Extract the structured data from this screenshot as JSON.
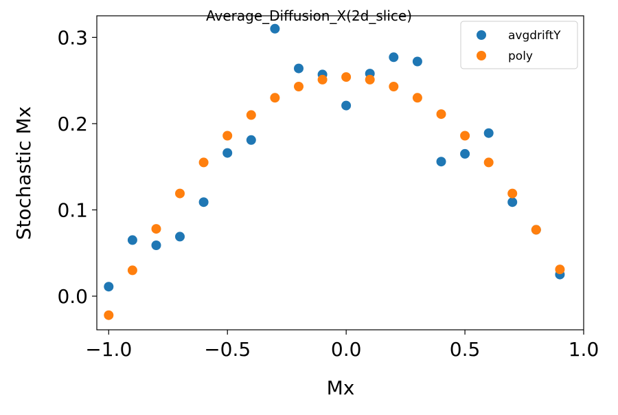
{
  "chart_data": {
    "type": "scatter",
    "title": "Average_Diffusion_X(2d_slice)",
    "xlabel": "Mx",
    "ylabel": "Stochastic Mx",
    "xlim": [
      -1.05,
      1.0
    ],
    "ylim": [
      -0.039,
      0.325
    ],
    "xticks": [
      -1.0,
      -0.5,
      0.0,
      0.5,
      1.0
    ],
    "xtick_labels": [
      "−1.0",
      "−0.5",
      "0.0",
      "0.5",
      "1.0"
    ],
    "yticks": [
      0.0,
      0.1,
      0.2,
      0.3
    ],
    "ytick_labels": [
      "0.0",
      "0.1",
      "0.2",
      "0.3"
    ],
    "grid": false,
    "legend_position": "top-right",
    "series": [
      {
        "name": "avgdriftY",
        "color": "#1f77b4",
        "x": [
          -1.0,
          -0.9,
          -0.8,
          -0.7,
          -0.6,
          -0.5,
          -0.4,
          -0.3,
          -0.2,
          -0.1,
          0.0,
          0.1,
          0.2,
          0.3,
          0.4,
          0.5,
          0.6,
          0.7,
          0.8,
          0.9
        ],
        "y": [
          0.011,
          0.065,
          0.059,
          0.069,
          0.109,
          0.166,
          0.181,
          0.31,
          0.264,
          0.257,
          0.221,
          0.258,
          0.277,
          0.272,
          0.156,
          0.165,
          0.189,
          0.109,
          0.077,
          0.025
        ]
      },
      {
        "name": "poly",
        "color": "#ff7f0e",
        "x": [
          -1.0,
          -0.9,
          -0.8,
          -0.7,
          -0.6,
          -0.5,
          -0.4,
          -0.3,
          -0.2,
          -0.1,
          0.0,
          0.1,
          0.2,
          0.3,
          0.4,
          0.5,
          0.6,
          0.7,
          0.8,
          0.9
        ],
        "y": [
          -0.022,
          0.03,
          0.078,
          0.119,
          0.155,
          0.186,
          0.21,
          0.23,
          0.243,
          0.251,
          0.254,
          0.251,
          0.243,
          0.23,
          0.211,
          0.186,
          0.155,
          0.119,
          0.077,
          0.031
        ]
      }
    ]
  }
}
